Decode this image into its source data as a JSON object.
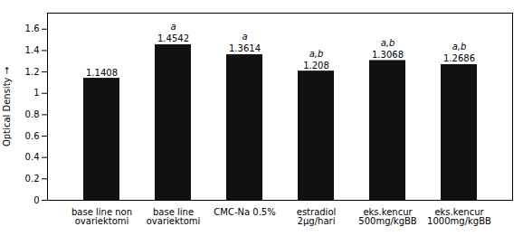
{
  "chart_data": {
    "type": "bar",
    "categories": [
      "base line non\novariektomi",
      "base line\novariektomi",
      "CMC-Na 0.5%",
      "estradiol\n2μg/hari",
      "eks.kencur\n500mg/kgBB",
      "eks.kencur\n1000mg/kgBB"
    ],
    "values": [
      1.1408,
      1.4542,
      1.3614,
      1.208,
      1.3068,
      1.2686
    ],
    "color": "#111111",
    "ylabel": "Optical Density",
    "ylim": [
      0,
      1.75
    ],
    "yticks": [
      0,
      0.2,
      0.4,
      0.6,
      0.8,
      1,
      1.2,
      1.4,
      1.6
    ],
    "grid": false,
    "data_labels": true,
    "annotations": [
      {
        "category": "base line\novariektomi",
        "text": "a"
      },
      {
        "category": "CMC-Na 0.5%",
        "text": "a"
      },
      {
        "category": "estradiol\n2μg/hari",
        "text": "a,b"
      },
      {
        "category": "eks.kencur\n500mg/kgBB",
        "text": "a,b"
      },
      {
        "category": "eks.kencur\n1000mg/kgBB",
        "text": "a,b"
      }
    ]
  }
}
